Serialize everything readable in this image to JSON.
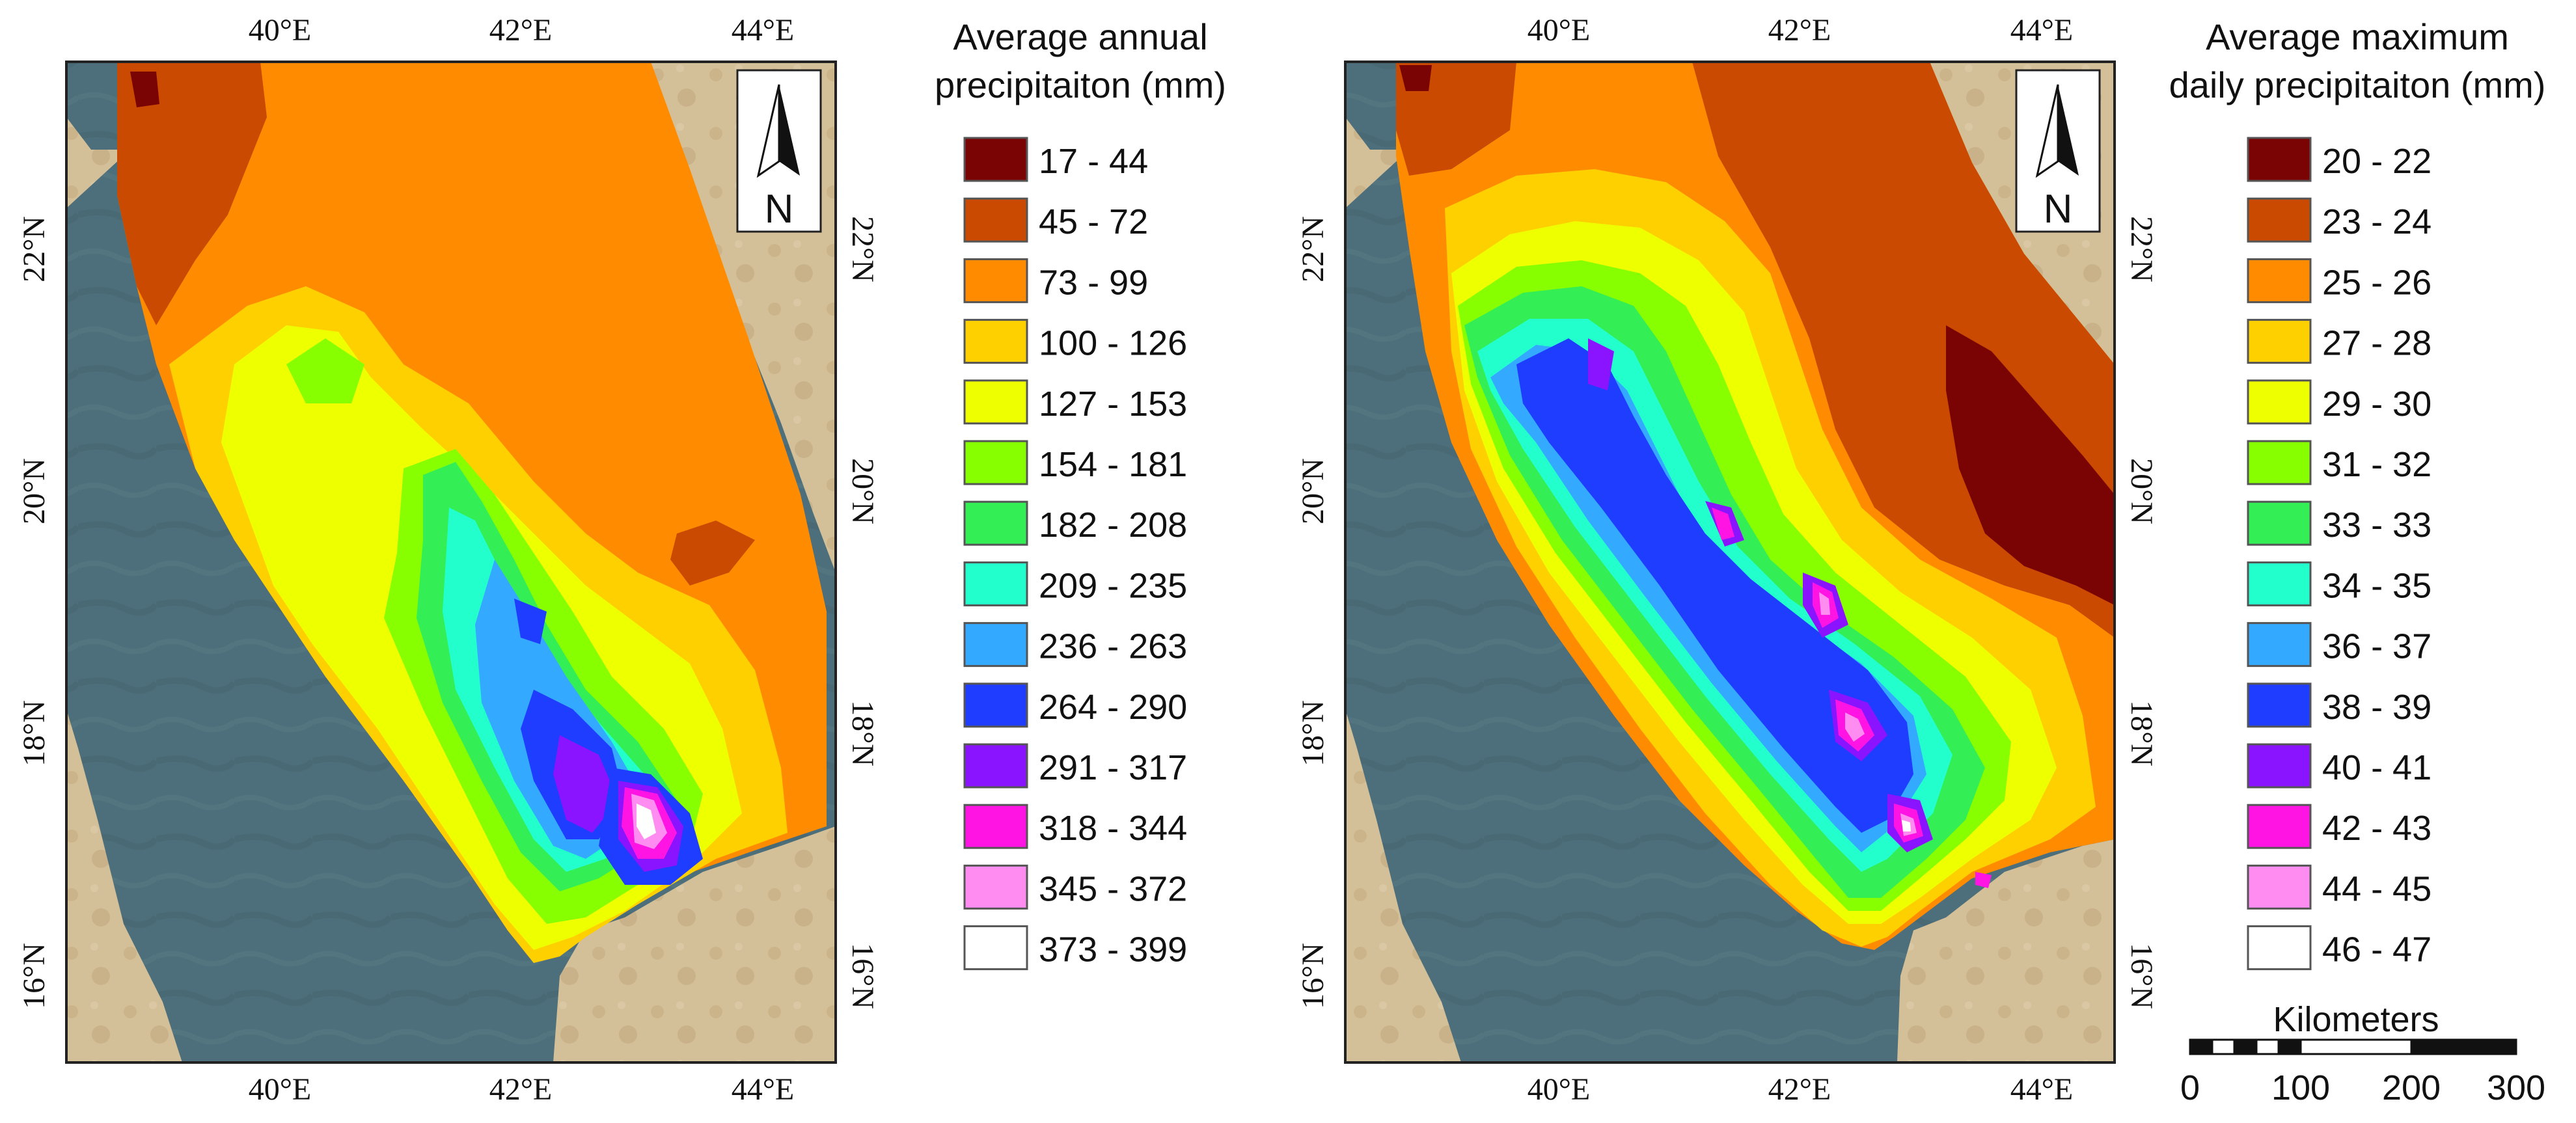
{
  "maps": [
    {
      "id": "annual",
      "legend": {
        "title_lines": [
          "Average annual",
          "precipitaiton (mm)"
        ],
        "classes": [
          {
            "label": "17 - 44",
            "color": "#7a0403"
          },
          {
            "label": "45 - 72",
            "color": "#c94a00"
          },
          {
            "label": "73 - 99",
            "color": "#ff8c00"
          },
          {
            "label": "100 - 126",
            "color": "#ffd000"
          },
          {
            "label": "127 - 153",
            "color": "#eeff00"
          },
          {
            "label": "154 - 181",
            "color": "#88ff00"
          },
          {
            "label": "182 - 208",
            "color": "#33ee55"
          },
          {
            "label": "209 - 235",
            "color": "#22ffcc"
          },
          {
            "label": "236 - 263",
            "color": "#33aaff"
          },
          {
            "label": "264 - 290",
            "color": "#1f3dff"
          },
          {
            "label": "291 - 317",
            "color": "#8a14ff"
          },
          {
            "label": "318 - 344",
            "color": "#ff14e4"
          },
          {
            "label": "345 - 372",
            "color": "#ff8cf0"
          },
          {
            "label": "373 - 399",
            "color": "#ffffff"
          }
        ]
      }
    },
    {
      "id": "maxdaily",
      "legend": {
        "title_lines": [
          "Average maximum",
          "daily precipitaiton (mm)"
        ],
        "classes": [
          {
            "label": "20 - 22",
            "color": "#7a0403"
          },
          {
            "label": "23 - 24",
            "color": "#c94a00"
          },
          {
            "label": "25 - 26",
            "color": "#ff8c00"
          },
          {
            "label": "27 - 28",
            "color": "#ffd000"
          },
          {
            "label": "29 - 30",
            "color": "#eeff00"
          },
          {
            "label": "31 - 32",
            "color": "#88ff00"
          },
          {
            "label": "33 - 33",
            "color": "#33ee55"
          },
          {
            "label": "34 - 35",
            "color": "#22ffcc"
          },
          {
            "label": "36 - 37",
            "color": "#33aaff"
          },
          {
            "label": "38 - 39",
            "color": "#1f3dff"
          },
          {
            "label": "40 - 41",
            "color": "#8a14ff"
          },
          {
            "label": "42 - 43",
            "color": "#ff14e4"
          },
          {
            "label": "44 - 45",
            "color": "#ff8cf0"
          },
          {
            "label": "46 - 47",
            "color": "#ffffff"
          }
        ]
      }
    }
  ],
  "axes": {
    "lon_labels": [
      "40°E",
      "42°E",
      "44°E"
    ],
    "lat_labels": [
      "22°N",
      "20°N",
      "18°N",
      "16°N"
    ]
  },
  "north_arrow": {
    "letter": "N"
  },
  "scale_bar": {
    "title": "Kilometers",
    "ticks": [
      "0",
      "100",
      "200",
      "300"
    ]
  },
  "colors": {
    "sea": "#4c6e79",
    "land": "#d0b98f",
    "frame": "#222222"
  }
}
